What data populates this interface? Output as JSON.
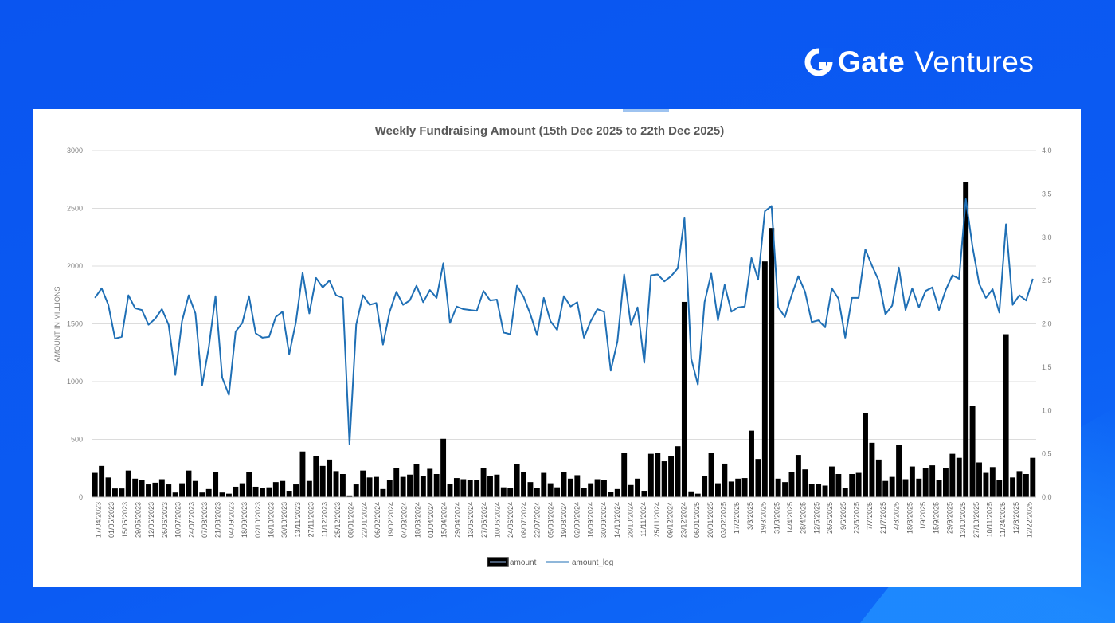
{
  "brand": {
    "name_bold": "Gate",
    "name_light": "Ventures",
    "logo_icon": "gate-g-icon"
  },
  "colors": {
    "background": "#0b5af2",
    "bar": "#000000",
    "line": "#1f6fb5",
    "grid": "#d9d9d9"
  },
  "chart_data": {
    "type": "bar+line",
    "title": "Weekly Fundraising Amount (15th Dec 2025 to 22th Dec 2025)",
    "ylabel": "AMOUNT IN MILLIONS",
    "y_ticks": [
      "3000",
      "2500",
      "2000",
      "1500",
      "1000",
      "500",
      "0"
    ],
    "y2_ticks": [
      "4,0",
      "3,5",
      "3,0",
      "2,5",
      "2,0",
      "1,5",
      "1,0",
      "0,5",
      "0,0"
    ],
    "ylim": [
      0,
      3000
    ],
    "y2lim": [
      0,
      4
    ],
    "legend": {
      "placement": "bottom-center",
      "bar_label": "amount",
      "line_label": "amount_log"
    },
    "x_tick_labels": [
      "17/04/2023",
      "01/05/2023",
      "15/05/2023",
      "29/05/2023",
      "12/06/2023",
      "26/06/2023",
      "10/07/2023",
      "24/07/2023",
      "07/08/2023",
      "21/08/2023",
      "04/09/2023",
      "18/09/2023",
      "02/10/2023",
      "16/10/2023",
      "30/10/2023",
      "13/11/2023",
      "27/11/2023",
      "11/12/2023",
      "25/12/2023",
      "08/01/2024",
      "22/01/2024",
      "06/02/2024",
      "19/02/2024",
      "04/03/2024",
      "18/03/2024",
      "01/04/2024",
      "15/04/2024",
      "29/04/2024",
      "13/05/2024",
      "27/05/2024",
      "10/06/2024",
      "24/06/2024",
      "08/07/2024",
      "22/07/2024",
      "05/08/2024",
      "19/08/2024",
      "02/09/2024",
      "16/09/2024",
      "30/09/2024",
      "14/10/2024",
      "28/10/2024",
      "11/11/2024",
      "25/11/2024",
      "09/12/2024",
      "23/12/2024",
      "06/01/2025",
      "20/01/2025",
      "03/02/2025",
      "17/2/2025",
      "3/3/2025",
      "19/3/2025",
      "31/3/2025",
      "14/4/2025",
      "28/4/2025",
      "12/5/2025",
      "26/5/2025",
      "9/6/2025",
      "23/6/2025",
      "7/7/2025",
      "21/7/2025",
      "4/8/2025",
      "18/8/2025",
      "1/9/2025",
      "15/9/2025",
      "29/9/2025",
      "13/10/2025",
      "27/10/2025",
      "10/11/2025",
      "11/24/2025",
      "12/8/2025",
      "12/22/2025"
    ],
    "amount": [
      210,
      270,
      170,
      75,
      75,
      230,
      160,
      150,
      110,
      125,
      155,
      110,
      40,
      120,
      230,
      140,
      40,
      70,
      220,
      40,
      30,
      90,
      120,
      220,
      90,
      80,
      85,
      130,
      140,
      55,
      110,
      395,
      140,
      355,
      270,
      325,
      225,
      200,
      15,
      110,
      230,
      170,
      175,
      70,
      145,
      250,
      175,
      195,
      285,
      185,
      245,
      200,
      505,
      115,
      165,
      155,
      150,
      145,
      250,
      185,
      195,
      85,
      80,
      285,
      215,
      130,
      80,
      210,
      120,
      85,
      220,
      160,
      190,
      80,
      120,
      155,
      145,
      45,
      70,
      385,
      105,
      160,
      55,
      375,
      385,
      310,
      355,
      440,
      1690,
      50,
      30,
      185,
      380,
      120,
      290,
      135,
      160,
      165,
      575,
      330,
      2040,
      2330,
      160,
      130,
      220,
      365,
      240,
      115,
      115,
      100,
      265,
      200,
      80,
      200,
      210,
      730,
      470,
      325,
      140,
      175,
      450,
      155,
      265,
      160,
      250,
      275,
      150,
      255,
      375,
      340,
      2730,
      790,
      300,
      210,
      260,
      145,
      1410,
      170,
      225,
      200,
      340
    ],
    "amount_log": [
      2.3,
      2.41,
      2.22,
      1.83,
      1.85,
      2.33,
      2.18,
      2.16,
      1.99,
      2.06,
      2.17,
      1.99,
      1.41,
      2.03,
      2.33,
      2.12,
      1.29,
      1.73,
      2.32,
      1.38,
      1.18,
      1.91,
      2.01,
      2.32,
      1.89,
      1.84,
      1.85,
      2.08,
      2.14,
      1.65,
      2.02,
      2.59,
      2.12,
      2.53,
      2.42,
      2.5,
      2.33,
      2.3,
      0.61,
      1.99,
      2.33,
      2.22,
      2.24,
      1.76,
      2.14,
      2.37,
      2.22,
      2.27,
      2.44,
      2.25,
      2.39,
      2.3,
      2.7,
      2.01,
      2.2,
      2.17,
      2.16,
      2.15,
      2.38,
      2.27,
      2.28,
      1.9,
      1.88,
      2.44,
      2.31,
      2.11,
      1.87,
      2.3,
      2.03,
      1.93,
      2.32,
      2.2,
      2.25,
      1.84,
      2.03,
      2.17,
      2.14,
      1.46,
      1.8,
      2.57,
      1.99,
      2.19,
      1.55,
      2.56,
      2.57,
      2.49,
      2.55,
      2.64,
      3.22,
      1.6,
      1.3,
      2.25,
      2.58,
      2.04,
      2.45,
      2.14,
      2.19,
      2.2,
      2.76,
      2.51,
      3.3,
      3.36,
      2.19,
      2.08,
      2.33,
      2.55,
      2.37,
      2.02,
      2.04,
      1.96,
      2.41,
      2.29,
      1.84,
      2.3,
      2.3,
      2.86,
      2.67,
      2.5,
      2.11,
      2.21,
      2.65,
      2.16,
      2.41,
      2.19,
      2.38,
      2.42,
      2.16,
      2.39,
      2.56,
      2.52,
      3.44,
      2.89,
      2.46,
      2.3,
      2.4,
      2.13,
      3.15,
      2.22,
      2.33,
      2.27,
      2.52
    ]
  }
}
